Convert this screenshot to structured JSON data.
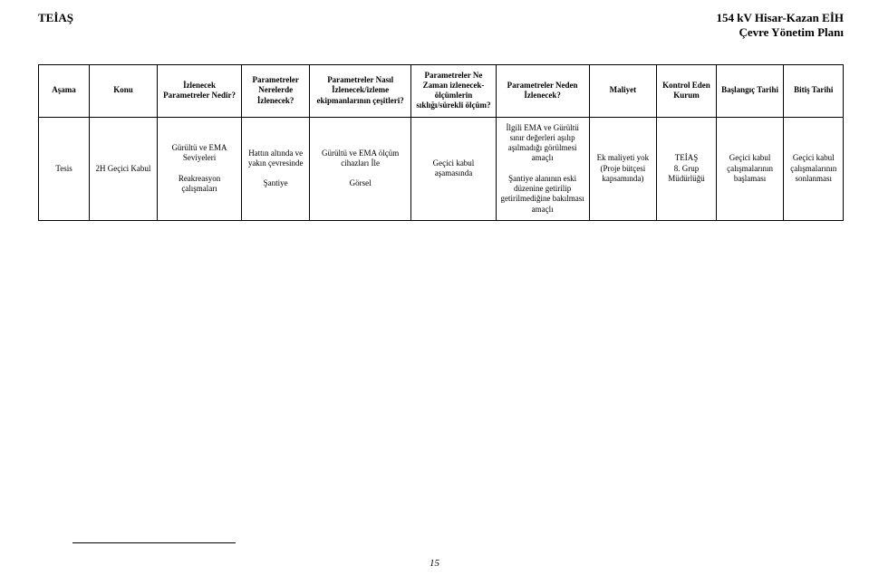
{
  "header": {
    "left": "TEİAŞ",
    "right_line1": "154 kV Hisar-Kazan EİH",
    "right_line2": "Çevre Yönetim Planı"
  },
  "table": {
    "headers": [
      "Aşama",
      "Konu",
      "İzlenecek Parametreler Nedir?",
      "Parametreler Nerelerde İzlenecek?",
      "Parametreler Nasıl İzlenecek/izleme ekipmanlarının çeşitleri?",
      "Parametreler Ne Zaman izlenecek- ölçümlerin sıklığı/sürekli ölçüm?",
      "Parametreler Neden İzlenecek?",
      "Maliyet",
      "Kontrol Eden Kurum",
      "Başlangıç Tarihi",
      "Bitiş Tarihi"
    ],
    "row": {
      "asama": "Tesis",
      "konu": "2H Geçici Kabul",
      "izlenecek": "Gürültü ve EMA Seviyeleri\n\nReakreasyon çalışmaları",
      "nerelerde": "Hattın altında ve yakın çevresinde\n\nŞantiye",
      "nasil": "Gürültü ve EMA ölçüm cihazları İle\n\nGörsel",
      "nezaman": "Geçici kabul aşamasında",
      "neden": "İlgili EMA ve Gürültü  sınır değerleri aşılıp aşılmadığı görülmesi amaçlı\n\nŞantiye alanının eski düzenine getirilip getirilmediğine bakılması amaçlı",
      "maliyet": "Ek maliyeti yok (Proje bütçesi kapsamında)",
      "kurum": "TEİAŞ\n8. Grup Müdürlüğü",
      "baslangic": "Geçici kabul çalışmalarının başlaması",
      "bitis": "Geçici kabul çalışmalarının sonlanması"
    }
  },
  "footer": {
    "page_number": "15"
  }
}
